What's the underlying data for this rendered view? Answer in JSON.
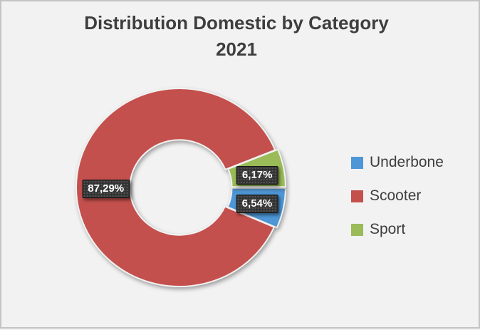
{
  "window": {
    "background": "#F2F2F2",
    "frame_color": "#C4C4C4"
  },
  "chart_data": {
    "type": "pie",
    "subtype": "donut",
    "title_line1": "Distribution Domestic by Category",
    "title_line2": "2021",
    "categories": [
      "Underbone",
      "Scooter",
      "Sport"
    ],
    "values": [
      6.54,
      87.29,
      6.17
    ],
    "value_labels": [
      "6,54%",
      "87,29%",
      "6,17%"
    ],
    "colors": [
      "#4D97D7",
      "#C4504D",
      "#9ABB57"
    ],
    "start_angle_deg": 90,
    "hole_ratio": 0.48,
    "legend_position": "right",
    "label_box_style": "dark-dotted",
    "label_text_color": "#FFFFFF",
    "title_color": "#3E3E3E",
    "legend": [
      {
        "label": "Underbone",
        "color": "#4D97D7"
      },
      {
        "label": "Scooter",
        "color": "#C4504D"
      },
      {
        "label": "Sport",
        "color": "#9ABB57"
      }
    ]
  }
}
